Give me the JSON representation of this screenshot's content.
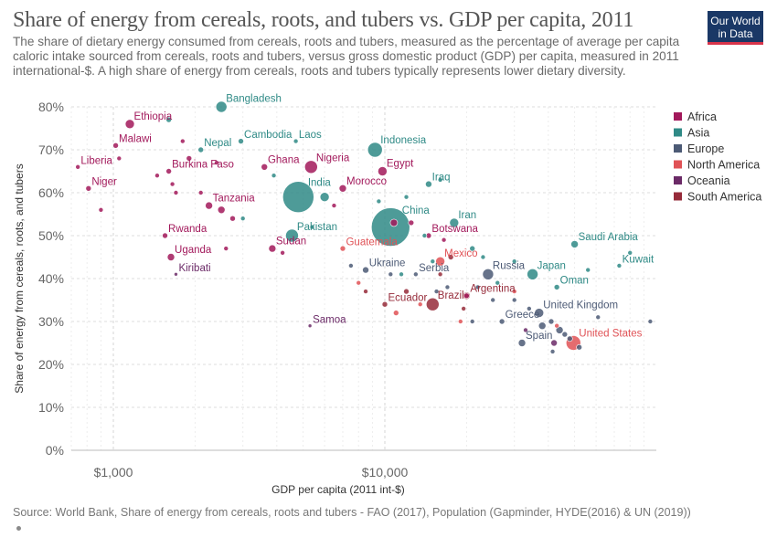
{
  "header": {
    "title": "Share of energy from cereals, roots, and tubers vs. GDP per capita, 2011",
    "subtitle": "The share of dietary energy consumed from cereals, roots and tubers, measured as the percentage of average per capita caloric intake sourced from cereals, roots and tubers, versus gross domestic product (GDP) per capita, measured in 2011 international-$. A high share of energy from cereals, roots and tubers typically represents lower dietary diversity.",
    "logo_line1": "Our World",
    "logo_line2": "in Data"
  },
  "footer": {
    "source": "Source: World Bank, Share of energy from cereals, roots and tubers - FAO (2017), Population (Gapminder, HYDE(2016) & UN (2019))"
  },
  "colors": {
    "Africa": "#a2195b",
    "Asia": "#2f8a86",
    "Europe": "#4c5a75",
    "North America": "#e05256",
    "Oceania": "#6b2a67",
    "South America": "#962b3a"
  },
  "chart_data": {
    "type": "scatter",
    "x_scale": "log",
    "xlim": [
      700,
      100000
    ],
    "ylim": [
      0,
      80
    ],
    "x_ticks": [
      1000,
      10000
    ],
    "x_tick_labels": [
      "$1,000",
      "$10,000"
    ],
    "y_ticks": [
      0,
      10,
      20,
      30,
      40,
      50,
      60,
      70,
      80
    ],
    "y_tick_labels": [
      "0%",
      "10%",
      "20%",
      "30%",
      "40%",
      "50%",
      "60%",
      "70%",
      "80%"
    ],
    "xlabel": "GDP per capita (2011 int-$)",
    "ylabel": "Share of energy from cereals, roots, and tubers",
    "grid": true,
    "legend_position": "right",
    "legend": [
      "Africa",
      "Asia",
      "Europe",
      "North America",
      "Oceania",
      "South America"
    ],
    "points": [
      {
        "label": "Ethiopia",
        "region": "Africa",
        "gdp": 1150,
        "share": 76,
        "r": 5
      },
      {
        "label": "Malawi",
        "region": "Africa",
        "gdp": 1020,
        "share": 71,
        "r": 3
      },
      {
        "label": "Liberia",
        "region": "Africa",
        "gdp": 740,
        "share": 66,
        "r": 2.5
      },
      {
        "label": "Niger",
        "region": "Africa",
        "gdp": 810,
        "share": 61,
        "r": 3
      },
      {
        "label": "Burkina Faso",
        "region": "Africa",
        "gdp": 1600,
        "share": 65,
        "r": 3
      },
      {
        "label": "Tanzania",
        "region": "Africa",
        "gdp": 2250,
        "share": 57,
        "r": 4
      },
      {
        "label": "Rwanda",
        "region": "Africa",
        "gdp": 1550,
        "share": 50,
        "r": 3
      },
      {
        "label": "Uganda",
        "region": "Africa",
        "gdp": 1630,
        "share": 45,
        "r": 4
      },
      {
        "label": "Ghana",
        "region": "Africa",
        "gdp": 3600,
        "share": 66,
        "r": 3.5
      },
      {
        "label": "Nigeria",
        "region": "Africa",
        "gdp": 5350,
        "share": 66,
        "r": 7
      },
      {
        "label": "Sudan",
        "region": "Africa",
        "gdp": 3850,
        "share": 47,
        "r": 4
      },
      {
        "label": "Morocco",
        "region": "Africa",
        "gdp": 7000,
        "share": 61,
        "r": 4
      },
      {
        "label": "Egypt",
        "region": "Africa",
        "gdp": 9800,
        "share": 65,
        "r": 5
      },
      {
        "label": "Botswana",
        "region": "Africa",
        "gdp": 14500,
        "share": 50,
        "r": 3
      },
      {
        "label": "",
        "region": "Africa",
        "gdp": 1050,
        "share": 68,
        "r": 2.5
      },
      {
        "label": "",
        "region": "Africa",
        "gdp": 1450,
        "share": 64,
        "r": 2.5
      },
      {
        "label": "",
        "region": "Africa",
        "gdp": 1650,
        "share": 62,
        "r": 2.5
      },
      {
        "label": "",
        "region": "Africa",
        "gdp": 2100,
        "share": 60,
        "r": 2.5
      },
      {
        "label": "",
        "region": "Africa",
        "gdp": 2500,
        "share": 56,
        "r": 4
      },
      {
        "label": "",
        "region": "Africa",
        "gdp": 2750,
        "share": 54,
        "r": 3
      },
      {
        "label": "",
        "region": "Africa",
        "gdp": 1900,
        "share": 68,
        "r": 3
      },
      {
        "label": "",
        "region": "Africa",
        "gdp": 900,
        "share": 56,
        "r": 2.5
      },
      {
        "label": "",
        "region": "Africa",
        "gdp": 2400,
        "share": 67,
        "r": 2.5
      },
      {
        "label": "",
        "region": "Africa",
        "gdp": 1800,
        "share": 72,
        "r": 2.5
      },
      {
        "label": "",
        "region": "Africa",
        "gdp": 1700,
        "share": 60,
        "r": 2.5
      },
      {
        "label": "",
        "region": "Africa",
        "gdp": 2600,
        "share": 47,
        "r": 2.5
      },
      {
        "label": "",
        "region": "Africa",
        "gdp": 10800,
        "share": 53,
        "r": 4
      },
      {
        "label": "",
        "region": "Africa",
        "gdp": 12500,
        "share": 53,
        "r": 3
      },
      {
        "label": "",
        "region": "Africa",
        "gdp": 4200,
        "share": 46,
        "r": 2.5
      },
      {
        "label": "",
        "region": "Africa",
        "gdp": 16500,
        "share": 49,
        "r": 2.5
      },
      {
        "label": "",
        "region": "Africa",
        "gdp": 20000,
        "share": 36,
        "r": 3
      },
      {
        "label": "",
        "region": "Africa",
        "gdp": 6500,
        "share": 57,
        "r": 2.5
      },
      {
        "label": "Bangladesh",
        "region": "Asia",
        "gdp": 2500,
        "share": 80,
        "r": 6
      },
      {
        "label": "Nepal",
        "region": "Asia",
        "gdp": 2100,
        "share": 70,
        "r": 3
      },
      {
        "label": "Cambodia",
        "region": "Asia",
        "gdp": 2950,
        "share": 72,
        "r": 3
      },
      {
        "label": "Laos",
        "region": "Asia",
        "gdp": 4700,
        "share": 72,
        "r": 2.5
      },
      {
        "label": "India",
        "region": "Asia",
        "gdp": 4800,
        "share": 59,
        "r": 17
      },
      {
        "label": "Pakistan",
        "region": "Asia",
        "gdp": 4550,
        "share": 50,
        "r": 7
      },
      {
        "label": "Indonesia",
        "region": "Asia",
        "gdp": 9200,
        "share": 70,
        "r": 8
      },
      {
        "label": "Iraq",
        "region": "Asia",
        "gdp": 14500,
        "share": 62,
        "r": 3.5
      },
      {
        "label": "China",
        "region": "Asia",
        "gdp": 10500,
        "share": 52,
        "r": 21
      },
      {
        "label": "Iran",
        "region": "Asia",
        "gdp": 18000,
        "share": 53,
        "r": 5
      },
      {
        "label": "Saudi Arabia",
        "region": "Asia",
        "gdp": 50000,
        "share": 48,
        "r": 4
      },
      {
        "label": "Japan",
        "region": "Asia",
        "gdp": 35000,
        "share": 41,
        "r": 6
      },
      {
        "label": "Oman",
        "region": "Asia",
        "gdp": 43000,
        "share": 38,
        "r": 3
      },
      {
        "label": "Kuwait",
        "region": "Asia",
        "gdp": 73000,
        "share": 43,
        "r": 2.5
      },
      {
        "label": "",
        "region": "Asia",
        "gdp": 1600,
        "share": 77,
        "r": 3
      },
      {
        "label": "",
        "region": "Asia",
        "gdp": 3900,
        "share": 64,
        "r": 2.5
      },
      {
        "label": "",
        "region": "Asia",
        "gdp": 6000,
        "share": 59,
        "r": 5
      },
      {
        "label": "",
        "region": "Asia",
        "gdp": 9500,
        "share": 58,
        "r": 2.5
      },
      {
        "label": "",
        "region": "Asia",
        "gdp": 5400,
        "share": 52,
        "r": 2.5
      },
      {
        "label": "",
        "region": "Asia",
        "gdp": 15000,
        "share": 44,
        "r": 2.5
      },
      {
        "label": "",
        "region": "Asia",
        "gdp": 21000,
        "share": 47,
        "r": 3
      },
      {
        "label": "",
        "region": "Asia",
        "gdp": 23000,
        "share": 45,
        "r": 2.5
      },
      {
        "label": "",
        "region": "Asia",
        "gdp": 30000,
        "share": 44,
        "r": 2.5
      },
      {
        "label": "",
        "region": "Asia",
        "gdp": 56000,
        "share": 42,
        "r": 2.5
      },
      {
        "label": "",
        "region": "Asia",
        "gdp": 80000,
        "share": 46,
        "r": 2.5
      },
      {
        "label": "",
        "region": "Asia",
        "gdp": 12000,
        "share": 59,
        "r": 2.5
      },
      {
        "label": "",
        "region": "Asia",
        "gdp": 26000,
        "share": 39,
        "r": 2.5
      },
      {
        "label": "",
        "region": "Asia",
        "gdp": 11500,
        "share": 41,
        "r": 2.5
      },
      {
        "label": "",
        "region": "Asia",
        "gdp": 3000,
        "share": 54,
        "r": 2.5
      },
      {
        "label": "",
        "region": "Asia",
        "gdp": 14000,
        "share": 50,
        "r": 2.5
      },
      {
        "label": "",
        "region": "Asia",
        "gdp": 16000,
        "share": 63,
        "r": 2.5
      },
      {
        "label": "Ukraine",
        "region": "Europe",
        "gdp": 8500,
        "share": 42,
        "r": 3.5
      },
      {
        "label": "Serbia",
        "region": "Europe",
        "gdp": 13000,
        "share": 41,
        "r": 2.5
      },
      {
        "label": "Russia",
        "region": "Europe",
        "gdp": 24000,
        "share": 41,
        "r": 6
      },
      {
        "label": "Greece",
        "region": "Europe",
        "gdp": 27000,
        "share": 30,
        "r": 3
      },
      {
        "label": "United Kingdom",
        "region": "Europe",
        "gdp": 37000,
        "share": 32,
        "r": 5
      },
      {
        "label": "Spain",
        "region": "Europe",
        "gdp": 32000,
        "share": 25,
        "r": 4
      },
      {
        "label": "",
        "region": "Europe",
        "gdp": 7500,
        "share": 43,
        "r": 2.5
      },
      {
        "label": "",
        "region": "Europe",
        "gdp": 10500,
        "share": 41,
        "r": 2.5
      },
      {
        "label": "",
        "region": "Europe",
        "gdp": 17000,
        "share": 38,
        "r": 2.5
      },
      {
        "label": "",
        "region": "Europe",
        "gdp": 22000,
        "share": 38,
        "r": 2.5
      },
      {
        "label": "",
        "region": "Europe",
        "gdp": 25000,
        "share": 35,
        "r": 2.5
      },
      {
        "label": "",
        "region": "Europe",
        "gdp": 30000,
        "share": 35,
        "r": 2.5
      },
      {
        "label": "",
        "region": "Europe",
        "gdp": 38000,
        "share": 29,
        "r": 4
      },
      {
        "label": "",
        "region": "Europe",
        "gdp": 41000,
        "share": 30,
        "r": 3
      },
      {
        "label": "",
        "region": "Europe",
        "gdp": 44000,
        "share": 28,
        "r": 4
      },
      {
        "label": "",
        "region": "Europe",
        "gdp": 46000,
        "share": 27,
        "r": 3
      },
      {
        "label": "",
        "region": "Europe",
        "gdp": 52000,
        "share": 24,
        "r": 3
      },
      {
        "label": "",
        "region": "Europe",
        "gdp": 61000,
        "share": 31,
        "r": 2.5
      },
      {
        "label": "",
        "region": "Europe",
        "gdp": 95000,
        "share": 30,
        "r": 2.5
      },
      {
        "label": "",
        "region": "Europe",
        "gdp": 21000,
        "share": 30,
        "r": 2.5
      },
      {
        "label": "",
        "region": "Europe",
        "gdp": 15500,
        "share": 37,
        "r": 2.5
      },
      {
        "label": "",
        "region": "Europe",
        "gdp": 48000,
        "share": 26,
        "r": 3
      },
      {
        "label": "",
        "region": "Europe",
        "gdp": 41500,
        "share": 23,
        "r": 2.5
      },
      {
        "label": "",
        "region": "Europe",
        "gdp": 34000,
        "share": 33,
        "r": 2.5
      },
      {
        "label": "Guatemala",
        "region": "North America",
        "gdp": 7000,
        "share": 47,
        "r": 3
      },
      {
        "label": "Mexico",
        "region": "North America",
        "gdp": 16000,
        "share": 44,
        "r": 5
      },
      {
        "label": "United States",
        "region": "North America",
        "gdp": 49500,
        "share": 25,
        "r": 8
      },
      {
        "label": "",
        "region": "North America",
        "gdp": 11000,
        "share": 32,
        "r": 3
      },
      {
        "label": "",
        "region": "North America",
        "gdp": 8000,
        "share": 39,
        "r": 2.5
      },
      {
        "label": "",
        "region": "North America",
        "gdp": 13500,
        "share": 34,
        "r": 2.5
      },
      {
        "label": "",
        "region": "North America",
        "gdp": 19000,
        "share": 30,
        "r": 2.5
      },
      {
        "label": "",
        "region": "North America",
        "gdp": 43000,
        "share": 29,
        "r": 2.5
      },
      {
        "label": "",
        "region": "North America",
        "gdp": 30000,
        "share": 37,
        "r": 2.5
      },
      {
        "label": "Kiribati",
        "region": "Oceania",
        "gdp": 1700,
        "share": 41,
        "r": 2
      },
      {
        "label": "Samoa",
        "region": "Oceania",
        "gdp": 5300,
        "share": 29,
        "r": 2
      },
      {
        "label": "",
        "region": "Oceania",
        "gdp": 42000,
        "share": 25,
        "r": 3.5
      },
      {
        "label": "",
        "region": "Oceania",
        "gdp": 33000,
        "share": 28,
        "r": 2.5
      },
      {
        "label": "Ecuador",
        "region": "South America",
        "gdp": 10000,
        "share": 34,
        "r": 3
      },
      {
        "label": "Brazil",
        "region": "South America",
        "gdp": 15000,
        "share": 34,
        "r": 7
      },
      {
        "label": "Argentina",
        "region": "South America",
        "gdp": 20000,
        "share": 36,
        "r": 4
      },
      {
        "label": "",
        "region": "South America",
        "gdp": 12000,
        "share": 37,
        "r": 3
      },
      {
        "label": "",
        "region": "South America",
        "gdp": 16000,
        "share": 41,
        "r": 2.5
      },
      {
        "label": "",
        "region": "South America",
        "gdp": 17500,
        "share": 45,
        "r": 3
      },
      {
        "label": "",
        "region": "South America",
        "gdp": 8500,
        "share": 37,
        "r": 2.5
      },
      {
        "label": "",
        "region": "South America",
        "gdp": 19500,
        "share": 33,
        "r": 2.5
      }
    ]
  }
}
